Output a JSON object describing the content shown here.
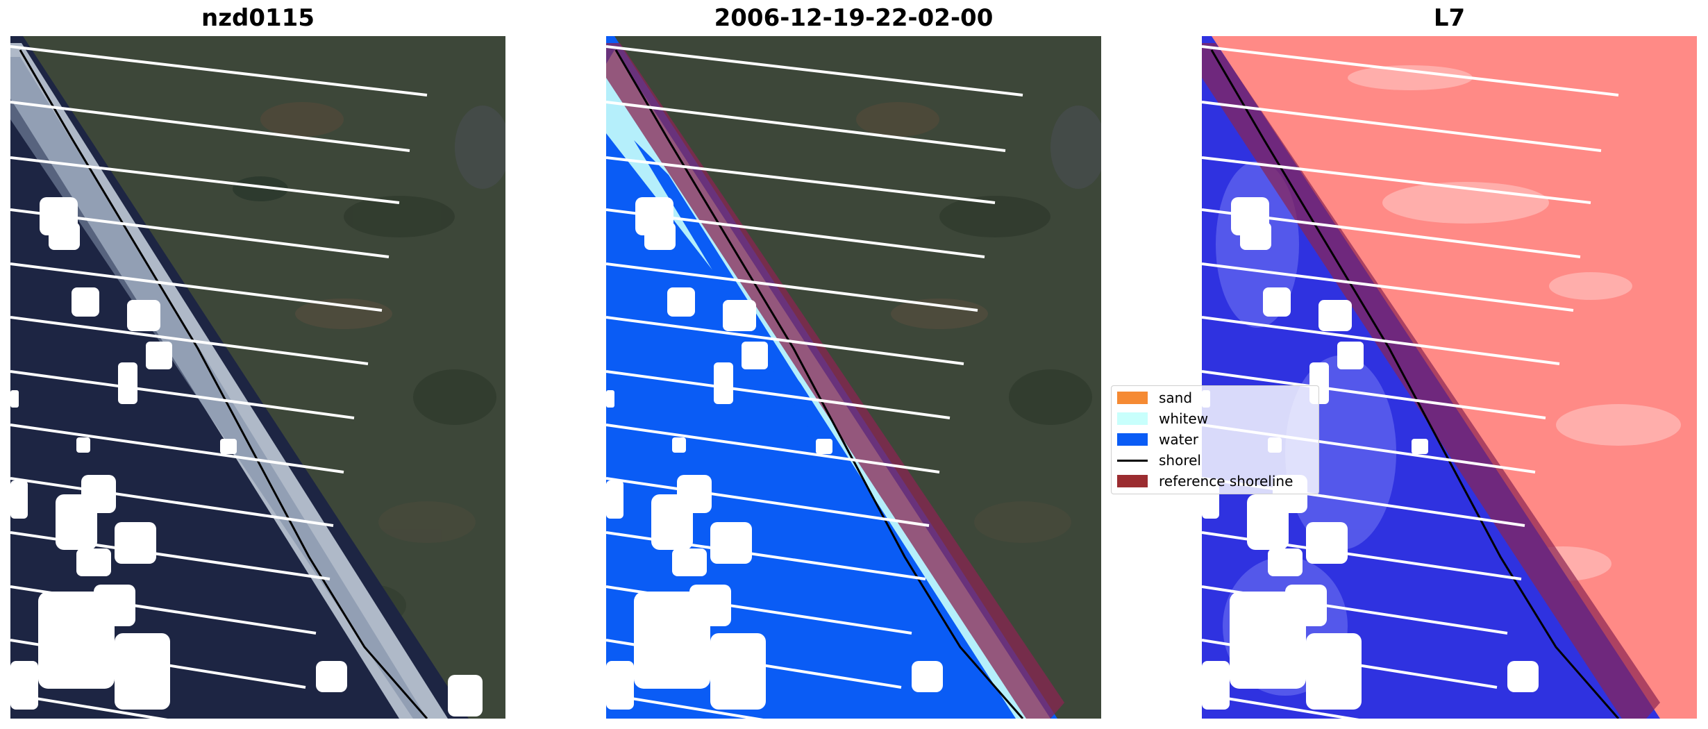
{
  "panels": [
    {
      "title": "nzd0115"
    },
    {
      "title": "2006-12-19-22-02-00"
    },
    {
      "title": "L7"
    }
  ],
  "legend": {
    "items": [
      {
        "label": "sand",
        "color": "#f58a33",
        "kind": "patch"
      },
      {
        "label": "whitew",
        "color": "#c8fffc",
        "kind": "patch"
      },
      {
        "label": "water",
        "color": "#0a5cf5",
        "kind": "patch"
      },
      {
        "label": "shorel",
        "color": "#000000",
        "kind": "line"
      },
      {
        "label": "reference shoreline",
        "color": "#9b2c30",
        "kind": "patch"
      }
    ]
  },
  "colors": {
    "sea_dark": "#1c2442",
    "surf": "#dfe6ee",
    "land": "#3c4639",
    "water_class": "#0a5cf5",
    "whitewater_class": "#c8fffc",
    "reference_buffer": "#8a2452",
    "index_land": "#ff8a86",
    "index_water": "#2a2fe6"
  }
}
